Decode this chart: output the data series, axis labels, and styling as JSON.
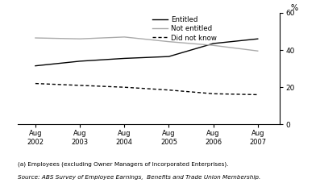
{
  "x_labels": [
    "Aug\n2002",
    "Aug\n2003",
    "Aug\n2004",
    "Aug\n2005",
    "Aug\n2006",
    "Aug\n2007"
  ],
  "x_values": [
    2002,
    2003,
    2004,
    2005,
    2006,
    2007
  ],
  "entitled": [
    31.5,
    34.0,
    35.5,
    36.5,
    43.5,
    46.0
  ],
  "not_entitled": [
    46.5,
    46.0,
    47.0,
    44.5,
    42.5,
    39.5
  ],
  "did_not_know": [
    22.0,
    21.0,
    20.0,
    18.5,
    16.5,
    16.0
  ],
  "ylim": [
    0,
    60
  ],
  "yticks": [
    0,
    20,
    40,
    60
  ],
  "ylabel": "%",
  "entitled_color": "#000000",
  "not_entitled_color": "#aaaaaa",
  "did_not_know_color": "#000000",
  "legend_entitled": "Entitled",
  "legend_not_entitled": "Not entitled",
  "legend_did_not_know": "Did not know",
  "footnote1": "(a) Employees (excluding Owner Managers of Incorporated Enterprises).",
  "footnote2": "Source: ABS Survey of Employee Earnings,  Benefits and Trade Union Membership."
}
